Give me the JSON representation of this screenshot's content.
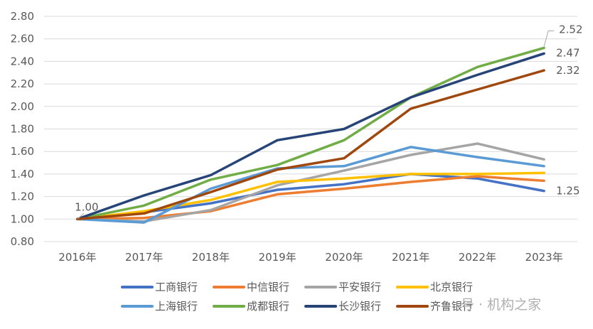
{
  "chart_data": {
    "type": "line",
    "x": [
      "2016年",
      "2017年",
      "2018年",
      "2019年",
      "2020年",
      "2021年",
      "2022年",
      "2023年"
    ],
    "ylim": [
      0.8,
      2.8
    ],
    "yticks": [
      "0.80",
      "1.00",
      "1.20",
      "1.40",
      "1.60",
      "1.80",
      "2.00",
      "2.20",
      "2.40",
      "2.60",
      "2.80"
    ],
    "grid": "horizontal",
    "legend_position": "bottom",
    "series": [
      {
        "name": "工商银行",
        "color": "#4472c4",
        "values": [
          1.0,
          1.06,
          1.14,
          1.26,
          1.31,
          1.4,
          1.36,
          1.25
        ]
      },
      {
        "name": "中信银行",
        "color": "#ed7d31",
        "values": [
          1.0,
          1.01,
          1.07,
          1.22,
          1.27,
          1.33,
          1.38,
          1.34
        ]
      },
      {
        "name": "平安银行",
        "color": "#a5a5a5",
        "values": [
          1.0,
          0.98,
          1.08,
          1.3,
          1.43,
          1.57,
          1.67,
          1.53
        ]
      },
      {
        "name": "北京银行",
        "color": "#ffc000",
        "values": [
          1.0,
          1.07,
          1.17,
          1.33,
          1.36,
          1.4,
          1.4,
          1.41
        ]
      },
      {
        "name": "上海银行",
        "color": "#5b9bd5",
        "values": [
          1.0,
          0.97,
          1.27,
          1.45,
          1.47,
          1.64,
          1.55,
          1.47
        ]
      },
      {
        "name": "成都银行",
        "color": "#70ad47",
        "values": [
          1.0,
          1.12,
          1.35,
          1.48,
          1.7,
          2.08,
          2.35,
          2.52
        ]
      },
      {
        "name": "长沙银行",
        "color": "#264478",
        "values": [
          1.0,
          1.21,
          1.39,
          1.7,
          1.8,
          2.08,
          2.28,
          2.47
        ]
      },
      {
        "name": "齐鲁银行",
        "color": "#9e480e",
        "values": [
          1.0,
          1.05,
          1.24,
          1.44,
          1.54,
          1.98,
          2.15,
          2.32
        ]
      }
    ],
    "data_labels": [
      {
        "text": "1.00",
        "x_index": 0,
        "value": 1.0
      },
      {
        "text": "2.52",
        "x_index": 7,
        "value": 2.52
      },
      {
        "text": "2.47",
        "x_index": 7,
        "value": 2.47
      },
      {
        "text": "2.32",
        "x_index": 7,
        "value": 2.32
      },
      {
        "text": "1.25",
        "x_index": 7,
        "value": 1.25
      }
    ]
  },
  "watermark": "号 · 机构之家"
}
